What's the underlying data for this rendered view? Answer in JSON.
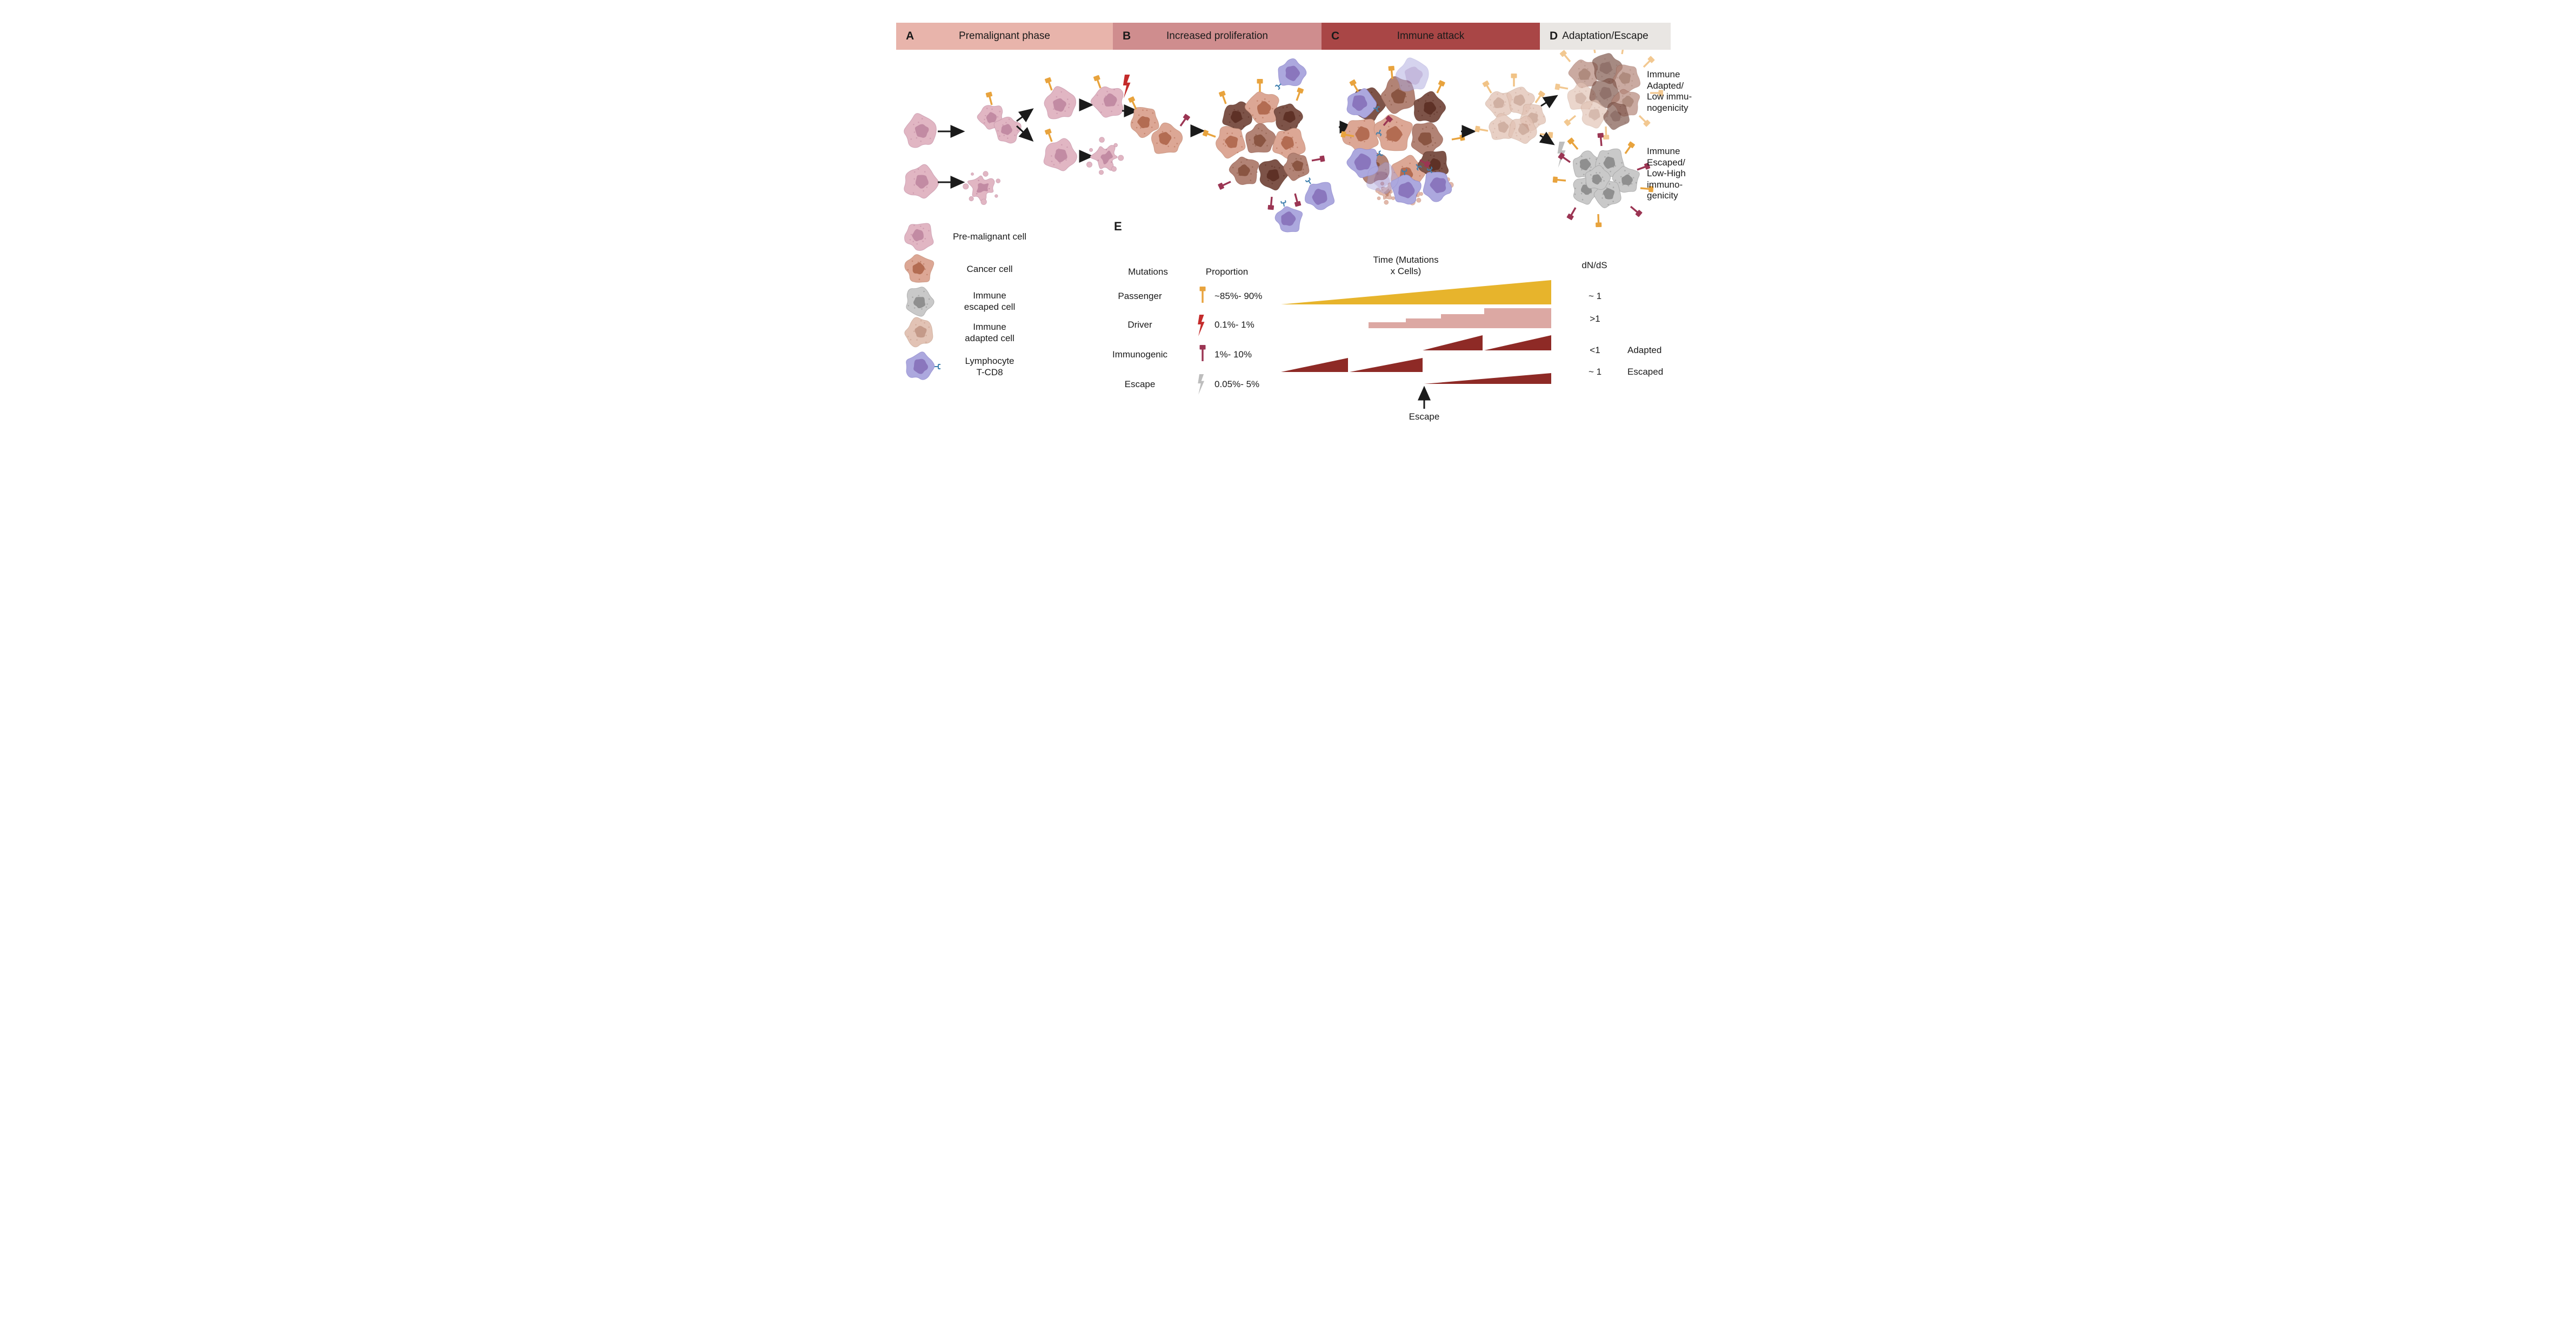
{
  "header": {
    "sections": [
      {
        "letter": "A",
        "label": "Premalignant phase",
        "color": "#E8B4AB"
      },
      {
        "letter": "B",
        "label": "Increased proliferation",
        "color": "#CF8D8E"
      },
      {
        "letter": "C",
        "label": "Immune attack",
        "color": "#A94646"
      },
      {
        "letter": "D",
        "label": "Adaptation/Escape",
        "color": "#E9E6E3"
      }
    ]
  },
  "outcomes": {
    "adapted": {
      "lines": [
        "Immune",
        "Adapted/",
        "Low immu-",
        "nogenicity"
      ]
    },
    "escaped": {
      "lines": [
        "Immune",
        "Escaped/",
        "Low-High",
        "immuno-",
        "genicity"
      ]
    }
  },
  "legend": {
    "items": [
      {
        "id": "pre-malignant-cell",
        "lines": [
          "Pre-malignant cell"
        ]
      },
      {
        "id": "cancer-cell",
        "lines": [
          "Cancer cell"
        ]
      },
      {
        "id": "immune-escaped-cell",
        "lines": [
          "Immune",
          "escaped cell"
        ]
      },
      {
        "id": "immune-adapted-cell",
        "lines": [
          "Immune",
          "adapted cell"
        ]
      },
      {
        "id": "lymphocyte-t-cd8",
        "lines": [
          "Lymphocyte",
          "T-CD8"
        ]
      }
    ]
  },
  "panel_e": {
    "label": "E",
    "table": {
      "col1": "Mutations",
      "col2": "Proportion",
      "rows": [
        {
          "mutation": "Passenger",
          "icon": "passenger-pin-icon",
          "proportion": "~85%- 90%"
        },
        {
          "mutation": "Driver",
          "icon": "driver-lightning-icon",
          "proportion": "0.1%- 1%"
        },
        {
          "mutation": "Immunogenic",
          "icon": "immunogenic-pin-icon",
          "proportion": "1%- 10%"
        },
        {
          "mutation": "Escape",
          "icon": "escape-lightning-icon",
          "proportion": "0.05%- 5%"
        }
      ]
    },
    "time_axis": {
      "lines": [
        "Time (Mutations",
        "x Cells)"
      ]
    },
    "dnds": {
      "header": "dN/dS",
      "rows": [
        {
          "value": "~ 1",
          "note": ""
        },
        {
          "value": ">1",
          "note": ""
        },
        {
          "value": "<1",
          "note": "Adapted"
        },
        {
          "value": "~ 1",
          "note": "Escaped"
        }
      ]
    },
    "escape_annotation": "Escape"
  },
  "chart_data": {
    "type": "area",
    "title": "Time (Mutations x Cells)",
    "xlabel": "Time (Mutations x Cells)",
    "ylabel": "dN/dS",
    "legend_position": "left-table",
    "grid": false,
    "series": [
      {
        "name": "Passenger",
        "proportion": "~85%- 90%",
        "dnds": "~ 1",
        "shape": "right-triangle-growth",
        "color": "#E7B42C"
      },
      {
        "name": "Driver",
        "proportion": "0.1%- 1%",
        "dnds": ">1",
        "shape": "stepwise-growth",
        "steps": 4,
        "color": "#DCA8A3"
      },
      {
        "name": "Immunogenic (Adapted)",
        "proportion": "1%- 10%",
        "dnds": "<1",
        "shape": "sawtooth",
        "segments": 4,
        "color": "#8E2A26"
      },
      {
        "name": "Immunogenic (Escaped)",
        "proportion": "0.05%- 5%",
        "dnds": "~ 1",
        "shape": "triangle-after-escape",
        "color": "#8E2A26"
      }
    ],
    "annotations": [
      {
        "text": "Escape",
        "type": "up-arrow",
        "position": "below-escaped-series-start"
      }
    ]
  },
  "colors": {
    "passenger_orange": "#E8A33D",
    "pale_orange": "#F1C386",
    "driver_red": "#C42B2B",
    "immunogenic_maroon": "#9B3553",
    "escape_gray": "#BDBDBD",
    "triangle_yellow": "#E7B42C",
    "step_pink": "#DCA8A3",
    "triangle_dark_red": "#8E2A26",
    "arrow_black": "#1A1A1A"
  }
}
